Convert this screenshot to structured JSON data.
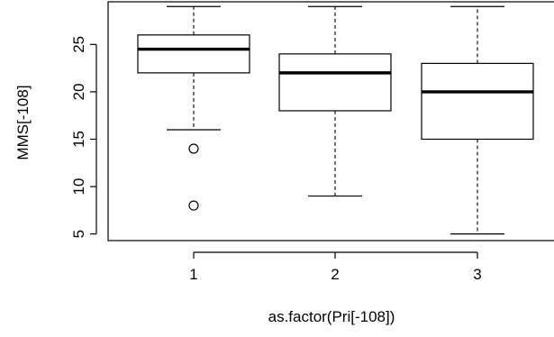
{
  "chart_data": {
    "type": "boxplot",
    "title": "",
    "xlabel": "as.factor(Pri[-108])",
    "ylabel": "MMS[-108]",
    "categories": [
      "1",
      "2",
      "3"
    ],
    "ylim": [
      4.3,
      29.5
    ],
    "yticks": [
      "5",
      "10",
      "15",
      "20",
      "25"
    ],
    "grid": false,
    "boxes": [
      {
        "category": "1",
        "whisker_low": 16,
        "q1": 22,
        "median": 24.5,
        "q3": 26,
        "whisker_high": 29,
        "outliers": [
          14,
          8
        ]
      },
      {
        "category": "2",
        "whisker_low": 9,
        "q1": 18,
        "median": 22,
        "q3": 24,
        "whisker_high": 29,
        "outliers": []
      },
      {
        "category": "3",
        "whisker_low": 5,
        "q1": 15,
        "median": 20,
        "q3": 23,
        "whisker_high": 29,
        "outliers": []
      }
    ]
  }
}
